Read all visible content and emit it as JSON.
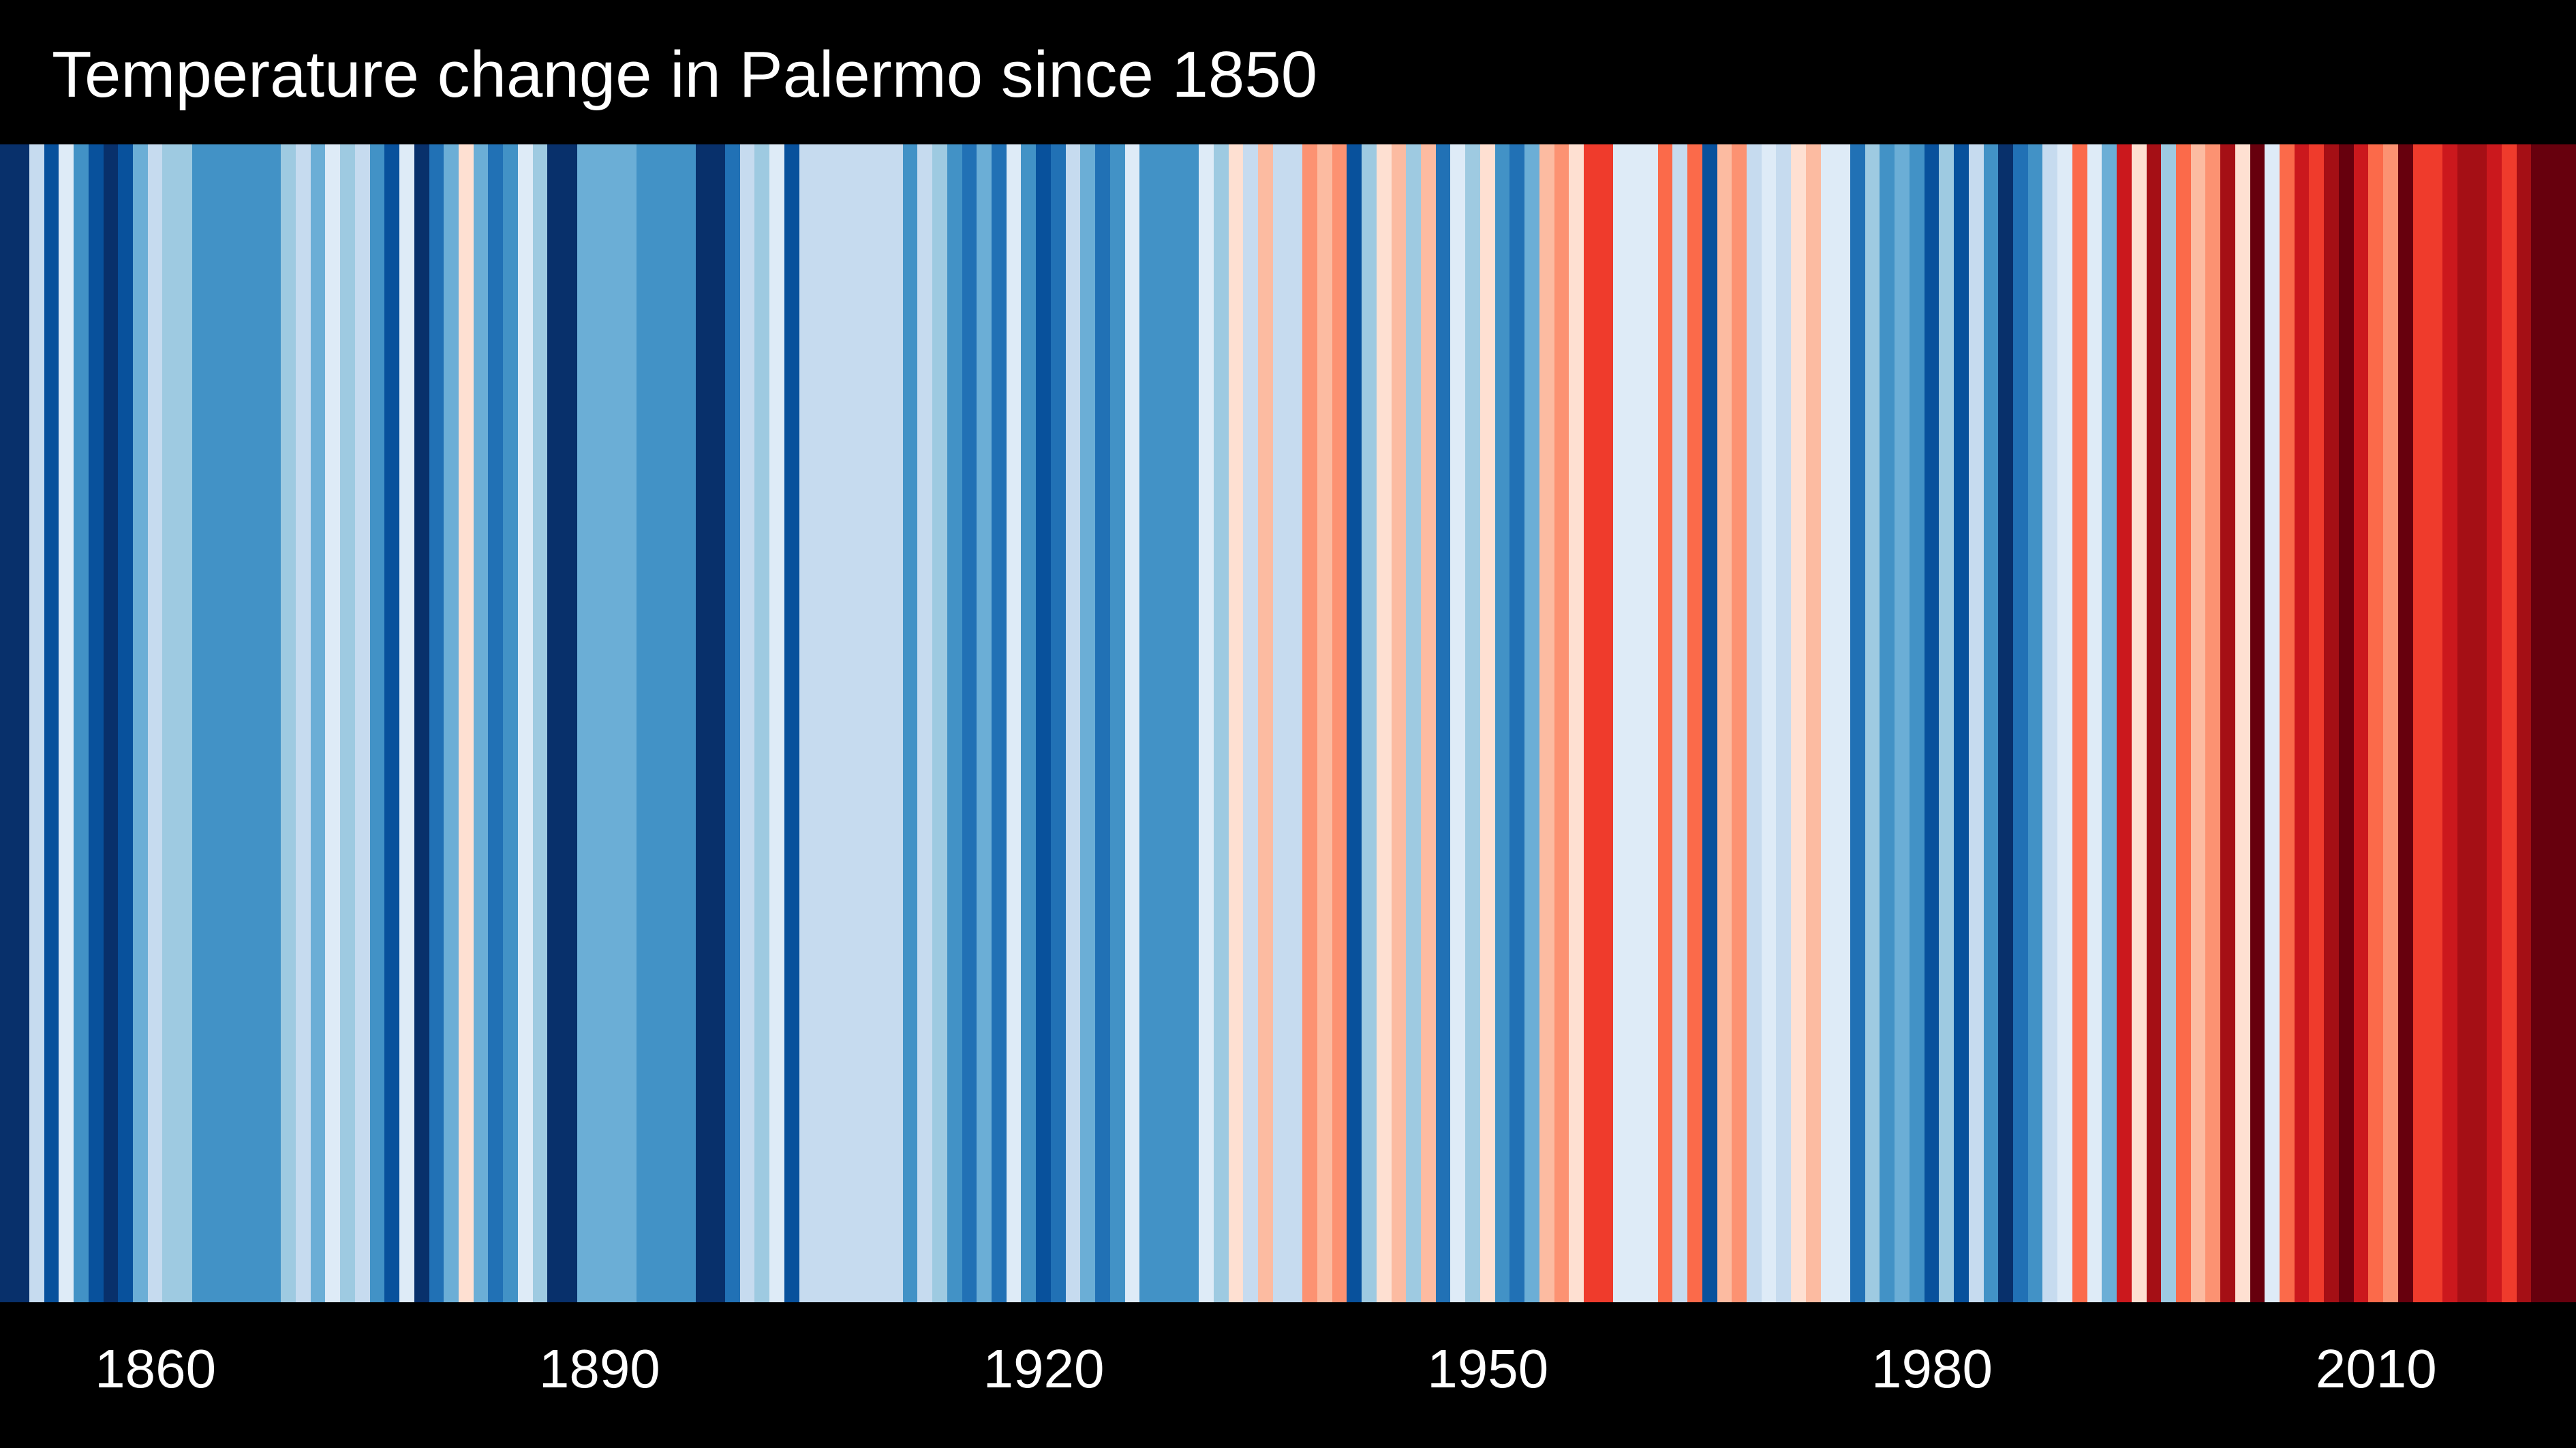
{
  "chart_data": {
    "type": "heatmap",
    "title": "Temperature change in Palermo since 1850",
    "x_start": 1850,
    "x_end": 2023,
    "x_tick_labels": [
      "1860",
      "1890",
      "1920",
      "1950",
      "1980",
      "2010"
    ],
    "x_ticks": [
      1860,
      1890,
      1920,
      1950,
      1980,
      2010
    ],
    "colors": {
      "background": "#000000",
      "text": "#ffffff",
      "scale": [
        "#08306b",
        "#08519c",
        "#2171b5",
        "#4292c6",
        "#6baed6",
        "#9ecae1",
        "#c6dbef",
        "#deebf7",
        "#fee0d2",
        "#fcbba1",
        "#fc9272",
        "#fb6a4a",
        "#ef3b2c",
        "#cb181d",
        "#a50f15",
        "#67000d"
      ]
    },
    "values": [
      0,
      0,
      6,
      1,
      7,
      3,
      1,
      0,
      1,
      4,
      6,
      5,
      5,
      3,
      3,
      3,
      3,
      3,
      3,
      5,
      6,
      4,
      7,
      5,
      6,
      3,
      1,
      7,
      0,
      2,
      4,
      8,
      4,
      2,
      3,
      7,
      5,
      0,
      0,
      4,
      4,
      4,
      4,
      3,
      3,
      3,
      3,
      0,
      0,
      2,
      6,
      5,
      7,
      1,
      6,
      6,
      6,
      6,
      6,
      6,
      6,
      3,
      6,
      5,
      3,
      2,
      4,
      2,
      7,
      3,
      1,
      2,
      6,
      4,
      2,
      3,
      7,
      3,
      3,
      3,
      3,
      7,
      5,
      8,
      6,
      9,
      6,
      6,
      10,
      9,
      10,
      1,
      5,
      8,
      9,
      5,
      9,
      2,
      7,
      5,
      8,
      3,
      2,
      4,
      9,
      10,
      8,
      12,
      12,
      7,
      7,
      7,
      11,
      6,
      11,
      1,
      9,
      10,
      6,
      7,
      6,
      8,
      9,
      7,
      7,
      2,
      5,
      3,
      4,
      3,
      1,
      5,
      1,
      6,
      3,
      0,
      2,
      3,
      6,
      7,
      11,
      7,
      4,
      13,
      8,
      14,
      5,
      11,
      9,
      10,
      14,
      8,
      15,
      7,
      11,
      13,
      12,
      14,
      15,
      13,
      11,
      10,
      15,
      12,
      12,
      13,
      14,
      14,
      13,
      12,
      14,
      15,
      15,
      15,
      15
    ]
  }
}
